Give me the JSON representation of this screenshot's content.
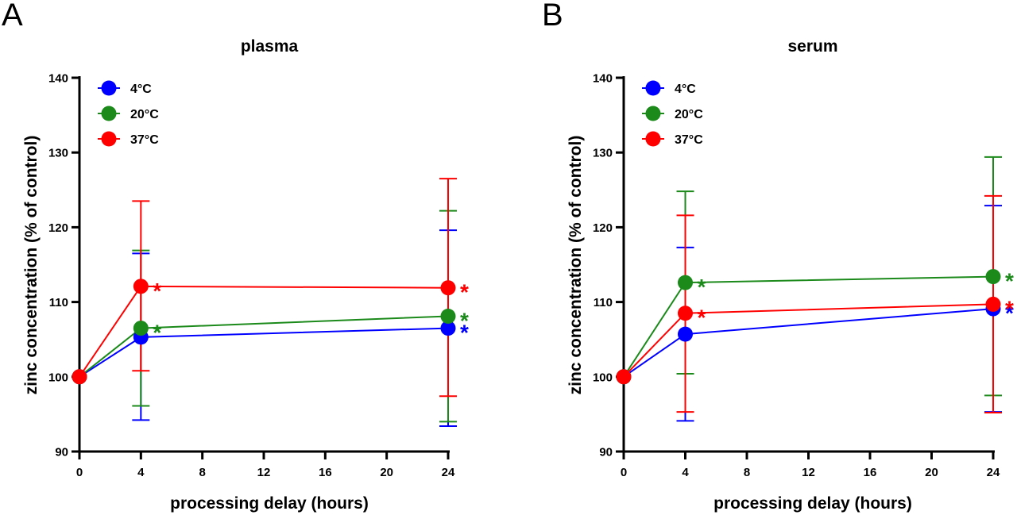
{
  "panels": [
    {
      "letter": "A"
    },
    {
      "letter": "B"
    }
  ],
  "colors": {
    "4°C": "#0000ff",
    "20°C": "#1b8a1b",
    "37°C": "#ff0000"
  },
  "chart_data": [
    {
      "type": "line",
      "title": "plasma",
      "xlabel": "processing delay (hours)",
      "ylabel": "zinc concentration (% of control)",
      "xlim": [
        0,
        24
      ],
      "ylim": [
        90,
        140
      ],
      "xticks": [
        0,
        4,
        8,
        12,
        16,
        20,
        24
      ],
      "yticks": [
        90,
        100,
        110,
        120,
        130,
        140
      ],
      "legend_position": "top-left",
      "grid": false,
      "x": [
        0,
        4,
        24
      ],
      "series": [
        {
          "name": "4°C",
          "color": "#0000ff",
          "values": [
            100,
            105.3,
            106.5
          ],
          "err_low": [
            null,
            94.2,
            93.4
          ],
          "err_high": [
            null,
            116.5,
            119.6
          ],
          "significance": [
            null,
            null,
            "*"
          ]
        },
        {
          "name": "20°C",
          "color": "#1b8a1b",
          "values": [
            100,
            106.5,
            108.1
          ],
          "err_low": [
            null,
            96.1,
            94.0
          ],
          "err_high": [
            null,
            116.9,
            122.2
          ],
          "significance": [
            null,
            "*",
            "*"
          ]
        },
        {
          "name": "37°C",
          "color": "#ff0000",
          "values": [
            100,
            112.1,
            111.9
          ],
          "err_low": [
            null,
            100.8,
            97.4
          ],
          "err_high": [
            null,
            123.5,
            126.5
          ],
          "significance": [
            null,
            "*",
            "*"
          ]
        }
      ]
    },
    {
      "type": "line",
      "title": "serum",
      "xlabel": "processing delay (hours)",
      "ylabel": "zinc concentration (% of control)",
      "xlim": [
        0,
        24
      ],
      "ylim": [
        90,
        140
      ],
      "xticks": [
        0,
        4,
        8,
        12,
        16,
        20,
        24
      ],
      "yticks": [
        90,
        100,
        110,
        120,
        130,
        140
      ],
      "legend_position": "top-left",
      "grid": false,
      "x": [
        0,
        4,
        24
      ],
      "series": [
        {
          "name": "4°C",
          "color": "#0000ff",
          "values": [
            100,
            105.7,
            109.1
          ],
          "err_low": [
            null,
            94.1,
            95.3
          ],
          "err_high": [
            null,
            117.3,
            122.9
          ],
          "significance": [
            null,
            null,
            "*"
          ]
        },
        {
          "name": "20°C",
          "color": "#1b8a1b",
          "values": [
            100,
            112.6,
            113.4
          ],
          "err_low": [
            null,
            100.4,
            97.5
          ],
          "err_high": [
            null,
            124.8,
            129.4
          ],
          "significance": [
            null,
            "*",
            "*"
          ]
        },
        {
          "name": "37°C",
          "color": "#ff0000",
          "values": [
            100,
            108.5,
            109.7
          ],
          "err_low": [
            null,
            95.3,
            95.2
          ],
          "err_high": [
            null,
            121.6,
            124.2
          ],
          "significance": [
            null,
            "*",
            "*"
          ]
        }
      ]
    }
  ]
}
